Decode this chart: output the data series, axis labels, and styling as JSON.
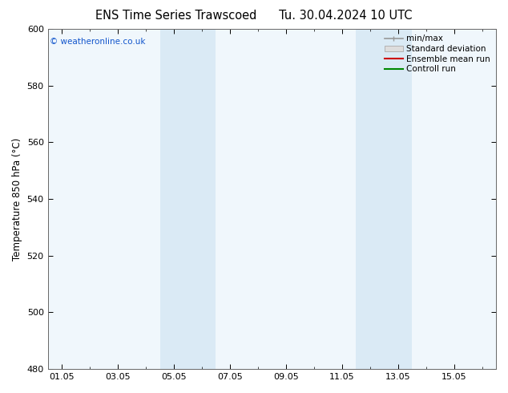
{
  "title": "ENS Time Series Trawscoed      Tu. 30.04.2024 10 UTC",
  "ylabel": "Temperature 850 hPa (°C)",
  "ylim": [
    480,
    600
  ],
  "yticks": [
    480,
    500,
    520,
    540,
    560,
    580,
    600
  ],
  "xtick_labels": [
    "01.05",
    "03.05",
    "05.05",
    "07.05",
    "09.05",
    "11.05",
    "13.05",
    "15.05"
  ],
  "xtick_positions": [
    0,
    2,
    4,
    6,
    8,
    10,
    12,
    14
  ],
  "xlim": [
    -0.5,
    15.5
  ],
  "shaded_bands": [
    {
      "x_start": 3.5,
      "x_end": 5.5
    },
    {
      "x_start": 10.5,
      "x_end": 12.5
    }
  ],
  "shade_color": "#daeaf5",
  "plot_bg_color": "#f0f7fc",
  "copyright_text": "© weatheronline.co.uk",
  "copyright_color": "#1155cc",
  "legend_entries": [
    {
      "label": "min/max",
      "color": "#999999",
      "type": "minmax"
    },
    {
      "label": "Standard deviation",
      "color": "#bbbbbb",
      "type": "stddev"
    },
    {
      "label": "Ensemble mean run",
      "color": "#cc0000",
      "type": "line"
    },
    {
      "label": "Controll run",
      "color": "#008800",
      "type": "line"
    }
  ],
  "background_color": "#ffffff",
  "title_fontsize": 10.5,
  "axis_fontsize": 8.5,
  "tick_fontsize": 8,
  "legend_fontsize": 7.5
}
